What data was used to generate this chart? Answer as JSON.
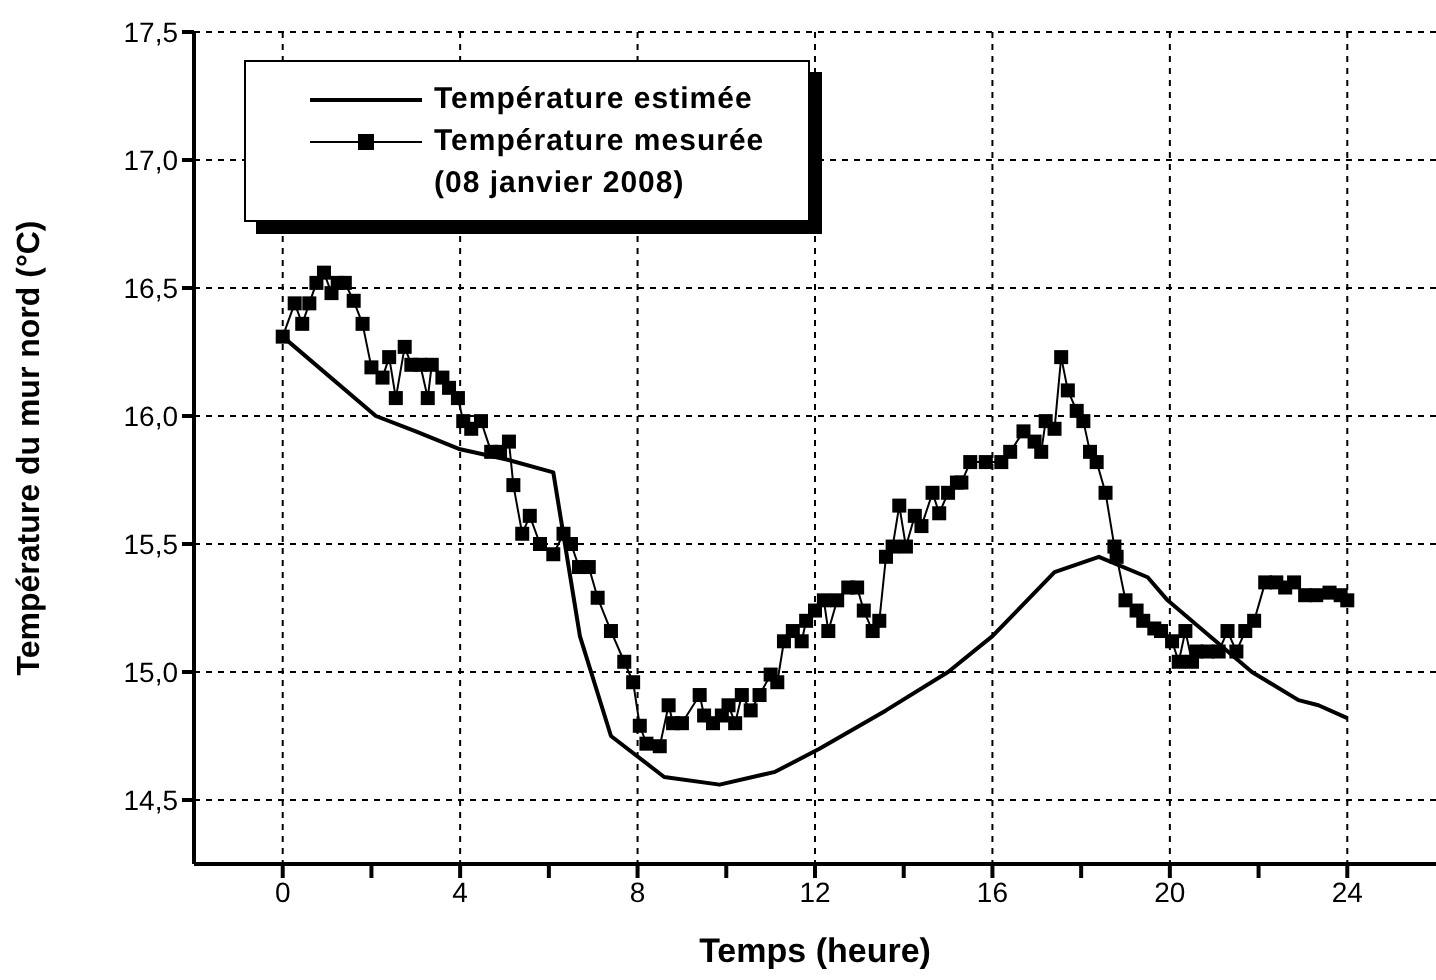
{
  "chart_data": {
    "type": "line",
    "xlabel": "Temps (heure)",
    "ylabel": "Température du mur nord (°C)",
    "xlim": [
      -2,
      26
    ],
    "ylim": [
      14.25,
      17.5
    ],
    "xticks": [
      0,
      {
        "value": 2,
        "label": null
      },
      4,
      {
        "value": 6,
        "label": null
      },
      8,
      {
        "value": 10,
        "label": null
      },
      12,
      {
        "value": 14,
        "label": null
      },
      16,
      {
        "value": 18,
        "label": null
      },
      20,
      {
        "value": 22,
        "label": null
      },
      24
    ],
    "yticks": [
      {
        "value": 14.5,
        "label": "14,5"
      },
      {
        "value": 15,
        "label": "15,0"
      },
      {
        "value": 15.5,
        "label": "15,5"
      },
      {
        "value": 16,
        "label": "16,0"
      },
      {
        "value": 16.5,
        "label": "16,5"
      },
      {
        "value": 17,
        "label": "17,0"
      },
      {
        "value": 17.5,
        "label": "17,5"
      }
    ],
    "grid": true,
    "legend": "top left",
    "annotations": [
      "(08 janvier 2008)"
    ],
    "series": [
      {
        "name": "Température estimée",
        "color": "#000000",
        "marker": "none",
        "x": [
          0,
          2.1,
          3,
          4,
          5.05,
          6.1,
          6.7,
          7.4,
          8.6,
          9.85,
          11.1,
          12.1,
          13.6,
          15,
          16,
          17.4,
          18.4,
          19.5,
          19.95,
          21.85,
          22.9,
          23.35,
          24
        ],
        "values": [
          16.31,
          16,
          15.94,
          15.87,
          15.83,
          15.78,
          15.14,
          14.75,
          14.59,
          14.56,
          14.61,
          14.7,
          14.85,
          15,
          15.14,
          15.39,
          15.45,
          15.37,
          15.28,
          15,
          14.89,
          14.87,
          14.82
        ]
      },
      {
        "name": "Température mesurée",
        "color": "#000000",
        "marker": "square",
        "x": [
          0,
          0.27,
          0.44,
          0.6,
          0.76,
          0.93,
          1.1,
          1.24,
          1.4,
          1.6,
          1.8,
          2,
          2.25,
          2.4,
          2.55,
          2.75,
          2.9,
          3.1,
          3.27,
          3.36,
          3.6,
          3.75,
          3.95,
          4.07,
          4.25,
          4.47,
          4.7,
          4.9,
          5.1,
          5.2,
          5.4,
          5.57,
          5.8,
          6.1,
          6.33,
          6.5,
          6.68,
          6.9,
          7.1,
          7.4,
          7.7,
          7.9,
          8.05,
          8.2,
          8.5,
          8.7,
          8.8,
          9,
          9.4,
          9.5,
          9.7,
          9.9,
          10.05,
          10.2,
          10.35,
          10.55,
          10.75,
          11,
          11.15,
          11.3,
          11.5,
          11.7,
          11.8,
          12,
          12.2,
          12.3,
          12.5,
          12.75,
          12.95,
          13.1,
          13.3,
          13.45,
          13.6,
          13.75,
          13.9,
          14.05,
          14.25,
          14.4,
          14.65,
          14.8,
          15,
          15.2,
          15.3,
          15.5,
          15.85,
          16.2,
          16.4,
          16.7,
          16.95,
          17.1,
          17.2,
          17.4,
          17.55,
          17.7,
          17.9,
          18.05,
          18.2,
          18.35,
          18.55,
          18.75,
          18.8,
          19,
          19.25,
          19.4,
          19.65,
          19.8,
          20.05,
          20.2,
          20.35,
          20.5,
          20.6,
          20.85,
          21.1,
          21.3,
          21.5,
          21.7,
          21.9,
          22.15,
          22.4,
          22.6,
          22.8,
          23.05,
          23.3,
          23.6,
          23.85,
          24
        ],
        "values": [
          16.31,
          16.44,
          16.36,
          16.44,
          16.52,
          16.56,
          16.48,
          16.52,
          16.52,
          16.45,
          16.36,
          16.19,
          16.15,
          16.23,
          16.07,
          16.27,
          16.2,
          16.2,
          16.07,
          16.2,
          16.15,
          16.11,
          16.07,
          15.98,
          15.95,
          15.98,
          15.86,
          15.86,
          15.9,
          15.73,
          15.54,
          15.61,
          15.5,
          15.46,
          15.54,
          15.5,
          15.41,
          15.41,
          15.29,
          15.16,
          15.04,
          14.96,
          14.79,
          14.72,
          14.71,
          14.87,
          14.8,
          14.8,
          14.91,
          14.83,
          14.8,
          14.83,
          14.87,
          14.8,
          14.91,
          14.85,
          14.91,
          14.99,
          14.96,
          15.12,
          15.16,
          15.12,
          15.2,
          15.24,
          15.28,
          15.16,
          15.28,
          15.33,
          15.33,
          15.24,
          15.16,
          15.2,
          15.45,
          15.49,
          15.65,
          15.49,
          15.61,
          15.57,
          15.7,
          15.62,
          15.7,
          15.74,
          15.74,
          15.82,
          15.82,
          15.82,
          15.86,
          15.94,
          15.9,
          15.86,
          15.98,
          15.95,
          16.23,
          16.1,
          16.02,
          15.98,
          15.86,
          15.82,
          15.7,
          15.49,
          15.45,
          15.28,
          15.24,
          15.2,
          15.17,
          15.16,
          15.12,
          15.04,
          15.16,
          15.04,
          15.08,
          15.08,
          15.08,
          15.16,
          15.08,
          15.16,
          15.2,
          15.35,
          15.35,
          15.33,
          15.35,
          15.3,
          15.3,
          15.31,
          15.3,
          15.28
        ]
      }
    ]
  }
}
